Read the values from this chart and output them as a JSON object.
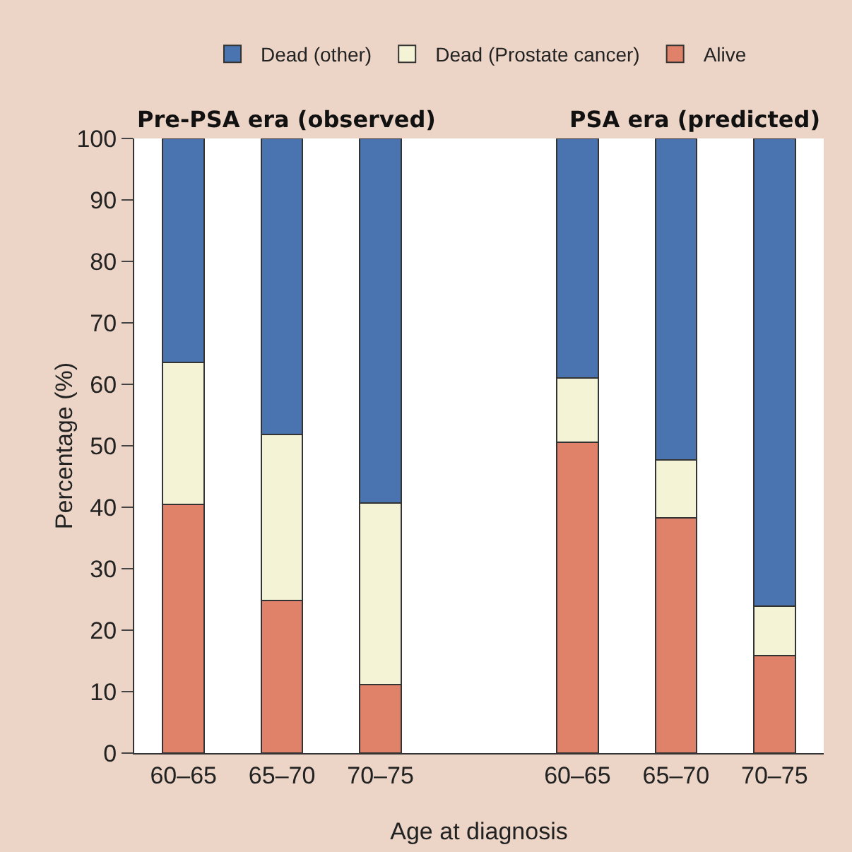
{
  "chart_data": {
    "type": "bar",
    "stacked": true,
    "xlabel": "Age at diagnosis",
    "ylabel": "Percentage (%)",
    "categories": [
      "60–65",
      "65–70",
      "70–75",
      null,
      "60–65",
      "65–70",
      "70–75"
    ],
    "series": [
      {
        "name": "Alive",
        "color": "#e0826a",
        "values": [
          40.5,
          24.8,
          11.1,
          null,
          50.6,
          38.3,
          15.9
        ]
      },
      {
        "name": "Dead (Prostate cancer)",
        "color": "#f5f3d5",
        "values": [
          23.1,
          27.0,
          29.6,
          null,
          10.4,
          9.4,
          8.0
        ]
      },
      {
        "name": "Dead (other)",
        "color": "#4a74b0",
        "values": [
          36.4,
          48.2,
          59.3,
          null,
          39.0,
          52.3,
          76.1
        ]
      }
    ],
    "annotations": [
      "Pre-PSA era (observed)",
      "PSA era (predicted)"
    ],
    "ylim": [
      0,
      100
    ],
    "yticks": [
      0,
      10,
      20,
      30,
      40,
      50,
      60,
      70,
      80,
      90,
      100
    ],
    "grid": false,
    "legend": "top"
  }
}
